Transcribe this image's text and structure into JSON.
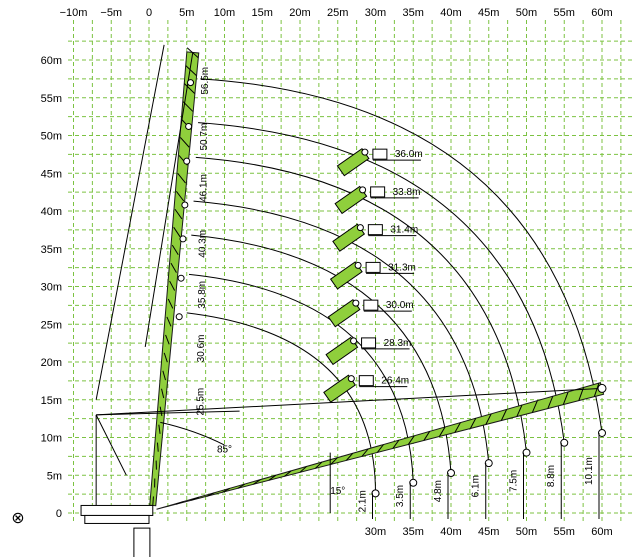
{
  "chart_data": {
    "type": "diagram",
    "x_axis_top_ticks": [
      "−10m",
      "−5m",
      "0",
      "5m",
      "10m",
      "15m",
      "20m",
      "25m",
      "30m",
      "35m",
      "40m",
      "45m",
      "50m",
      "55m",
      "60m"
    ],
    "x_axis_bottom_ticks": [
      "30m",
      "35m",
      "40m",
      "45m",
      "50m",
      "55m",
      "60m"
    ],
    "y_axis_ticks": [
      "60m",
      "55m",
      "50m",
      "45m",
      "40m",
      "35m",
      "30m",
      "25m",
      "20m",
      "15m",
      "10m",
      "5m",
      "0"
    ],
    "main_boom_angle": "85°",
    "jib_angle": "15°",
    "configurations": [
      {
        "main_boom": "25.5m",
        "jib": "26.4m",
        "clearance": "2.1m"
      },
      {
        "main_boom": "30.6m",
        "jib": "28.3m",
        "clearance": "3.5m"
      },
      {
        "main_boom": "35.8m",
        "jib": "30.0m",
        "clearance": "4.8m"
      },
      {
        "main_boom": "40.3m",
        "jib": "31.3m",
        "clearance": "6.1m"
      },
      {
        "main_boom": "46.1m",
        "jib": "31.4m",
        "clearance": "7.5m"
      },
      {
        "main_boom": "50.7m",
        "jib": "33.8m",
        "clearance": "8.8m"
      },
      {
        "main_boom": "56.5m",
        "jib": "36.0m",
        "clearance": "10.1m"
      }
    ],
    "rotation_symbol": "⊗"
  }
}
